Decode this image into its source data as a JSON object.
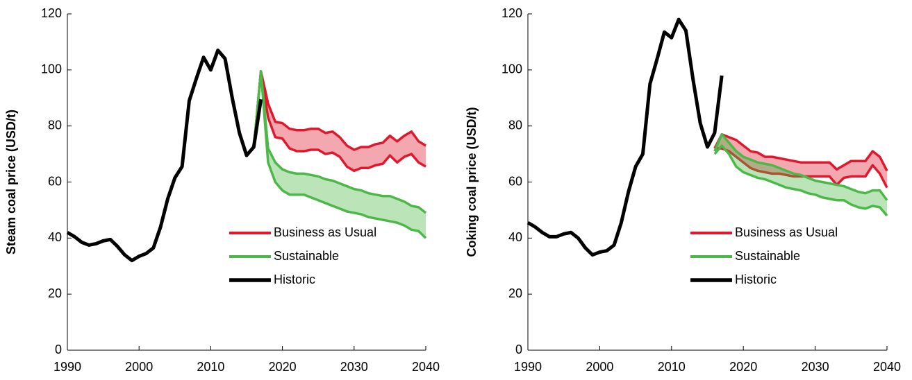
{
  "chart_data": [
    {
      "type": "line",
      "y_label": "Steam coal price (USD/t)",
      "xlim": [
        1990,
        2040
      ],
      "ylim": [
        0,
        120
      ],
      "xticks": [
        1990,
        2000,
        2010,
        2020,
        2030,
        2040
      ],
      "yticks": [
        0,
        20,
        40,
        60,
        80,
        100,
        120
      ],
      "legend": "lower right",
      "series": [
        {
          "name": "Business as Usual",
          "color": "#e0182d",
          "x": [
            2016,
            2017,
            2018,
            2019,
            2020,
            2021,
            2022,
            2023,
            2024,
            2025,
            2026,
            2027,
            2028,
            2029,
            2030,
            2031,
            2032,
            2033,
            2034,
            2035,
            2036,
            2037,
            2038,
            2039,
            2040
          ],
          "high": [
            72,
            99.5,
            88,
            81.5,
            81,
            79,
            78.5,
            78.5,
            79,
            79,
            77.5,
            78,
            76,
            73,
            71.5,
            72.5,
            72.5,
            73.5,
            74,
            76.5,
            74.5,
            76.5,
            78,
            74.5,
            73
          ],
          "low": [
            72,
            99.5,
            83,
            76,
            75.5,
            72,
            71,
            71,
            71.5,
            71.5,
            70,
            70.5,
            69,
            65.5,
            64,
            65,
            65,
            66,
            66.5,
            69.5,
            67,
            69,
            70,
            67,
            65.5
          ]
        },
        {
          "name": "Sustainable",
          "color": "#4cb848",
          "x": [
            2016,
            2017,
            2018,
            2019,
            2020,
            2021,
            2022,
            2023,
            2024,
            2025,
            2026,
            2027,
            2028,
            2029,
            2030,
            2031,
            2032,
            2033,
            2034,
            2035,
            2036,
            2037,
            2038,
            2039,
            2040
          ],
          "high": [
            72,
            99.5,
            72,
            67,
            64.5,
            63.5,
            63,
            63,
            62.5,
            62,
            61,
            60.5,
            59.5,
            58.5,
            57.5,
            57,
            56,
            55.5,
            55,
            55,
            54,
            53,
            51.5,
            51,
            49
          ],
          "low": [
            72,
            99.5,
            67,
            60,
            57,
            55.5,
            55.5,
            55.5,
            54.5,
            53.5,
            52.5,
            51.5,
            50.5,
            49.5,
            49,
            48.5,
            47.5,
            47,
            46.5,
            46,
            45.5,
            44.5,
            43,
            42.5,
            40
          ]
        },
        {
          "name": "Historic",
          "color": "#000000",
          "x": [
            1990,
            1991,
            1992,
            1993,
            1994,
            1995,
            1996,
            1997,
            1998,
            1999,
            2000,
            2001,
            2002,
            2003,
            2004,
            2005,
            2006,
            2007,
            2008,
            2009,
            2010,
            2011,
            2012,
            2013,
            2014,
            2015,
            2016,
            2017
          ],
          "values": [
            42,
            40.5,
            38.5,
            37.5,
            38,
            39,
            39.5,
            37,
            34,
            32,
            33.5,
            34.5,
            36.5,
            44,
            54,
            61.5,
            65.5,
            89,
            97,
            104.5,
            100,
            107,
            104,
            90,
            77.5,
            69.5,
            72.5,
            89.5
          ]
        }
      ]
    },
    {
      "type": "line",
      "y_label": "Coking coal price (USD/t)",
      "xlim": [
        1990,
        2040
      ],
      "ylim": [
        0,
        120
      ],
      "xticks": [
        1990,
        2000,
        2010,
        2020,
        2030,
        2040
      ],
      "yticks": [
        0,
        20,
        40,
        60,
        80,
        100,
        120
      ],
      "legend": "lower right",
      "series": [
        {
          "name": "Business as Usual",
          "color": "#e0182d",
          "x": [
            2016,
            2017,
            2018,
            2019,
            2020,
            2021,
            2022,
            2023,
            2024,
            2025,
            2026,
            2027,
            2028,
            2029,
            2030,
            2031,
            2032,
            2033,
            2034,
            2035,
            2036,
            2037,
            2038,
            2039,
            2040
          ],
          "high": [
            72,
            77,
            76,
            75,
            73,
            71,
            70.5,
            69,
            69,
            68.5,
            68,
            67.5,
            67,
            67,
            67,
            67,
            67,
            64.5,
            66,
            67.5,
            67.5,
            67.5,
            71,
            69,
            64
          ],
          "low": [
            72,
            72,
            71,
            69,
            67,
            65,
            64,
            63.5,
            63,
            63,
            62.5,
            62,
            62,
            62,
            62,
            62,
            62,
            59,
            61.5,
            62,
            62,
            62,
            66,
            63,
            58
          ]
        },
        {
          "name": "Sustainable",
          "color": "#4cb848",
          "x": [
            2016,
            2017,
            2018,
            2019,
            2020,
            2021,
            2022,
            2023,
            2024,
            2025,
            2026,
            2027,
            2028,
            2029,
            2030,
            2031,
            2032,
            2033,
            2034,
            2035,
            2036,
            2037,
            2038,
            2039,
            2040
          ],
          "high": [
            71,
            77,
            74,
            71,
            69,
            68,
            67,
            66.5,
            66,
            65,
            64,
            63,
            62.5,
            61.5,
            60.5,
            60,
            59.5,
            59,
            58.5,
            57.5,
            56.5,
            56,
            57,
            57,
            53.5
          ],
          "low": [
            70,
            73,
            70,
            65.5,
            63.5,
            62.5,
            61.5,
            61,
            60,
            59,
            58,
            57.5,
            57,
            56,
            55.5,
            54.5,
            54,
            53.5,
            53.5,
            52,
            51,
            50.5,
            51.5,
            51,
            48
          ]
        },
        {
          "name": "Historic",
          "color": "#000000",
          "x": [
            1990,
            1991,
            1992,
            1993,
            1994,
            1995,
            1996,
            1997,
            1998,
            1999,
            2000,
            2001,
            2002,
            2003,
            2004,
            2005,
            2006,
            2007,
            2008,
            2009,
            2010,
            2011,
            2012,
            2013,
            2014,
            2015,
            2016,
            2017
          ],
          "values": [
            45.5,
            44,
            42,
            40.5,
            40.5,
            41.5,
            42,
            40,
            36.5,
            34,
            35,
            35.5,
            37.5,
            45.5,
            56.5,
            65.5,
            70,
            95,
            104,
            113.5,
            111.5,
            118,
            114,
            96.5,
            81,
            72.5,
            77.5,
            98
          ]
        }
      ]
    }
  ]
}
